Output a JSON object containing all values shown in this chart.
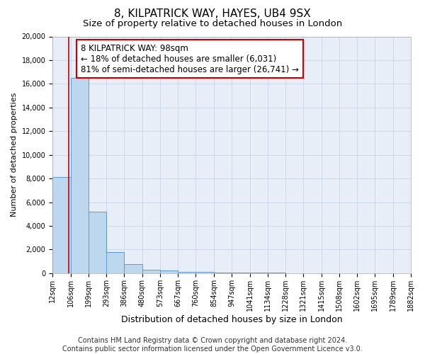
{
  "title": "8, KILPATRICK WAY, HAYES, UB4 9SX",
  "subtitle": "Size of property relative to detached houses in London",
  "xlabel": "Distribution of detached houses by size in London",
  "ylabel": "Number of detached properties",
  "bin_labels": [
    "12sqm",
    "106sqm",
    "199sqm",
    "293sqm",
    "386sqm",
    "480sqm",
    "573sqm",
    "667sqm",
    "760sqm",
    "854sqm",
    "947sqm",
    "1041sqm",
    "1134sqm",
    "1228sqm",
    "1321sqm",
    "1415sqm",
    "1508sqm",
    "1602sqm",
    "1695sqm",
    "1789sqm",
    "1882sqm"
  ],
  "bar_heights": [
    8100,
    16500,
    5200,
    1800,
    750,
    300,
    200,
    120,
    80,
    60,
    40,
    30,
    20,
    15,
    12,
    10,
    8,
    6,
    5,
    4
  ],
  "bar_color": "#BDD7EE",
  "bar_edge_color": "#5B9BD5",
  "red_line_x": 98,
  "annotation_text": "8 KILPATRICK WAY: 98sqm\n← 18% of detached houses are smaller (6,031)\n81% of semi-detached houses are larger (26,741) →",
  "annotation_box_color": "#FFFFFF",
  "annotation_box_edge": "#CC0000",
  "red_line_color": "#CC0000",
  "ylim": [
    0,
    20000
  ],
  "yticks": [
    0,
    2000,
    4000,
    6000,
    8000,
    10000,
    12000,
    14000,
    16000,
    18000,
    20000
  ],
  "bg_color": "#E8EEF8",
  "footer_line1": "Contains HM Land Registry data © Crown copyright and database right 2024.",
  "footer_line2": "Contains public sector information licensed under the Open Government Licence v3.0.",
  "title_fontsize": 11,
  "subtitle_fontsize": 9.5,
  "xlabel_fontsize": 9,
  "ylabel_fontsize": 8,
  "tick_fontsize": 7,
  "annotation_fontsize": 8.5,
  "footer_fontsize": 7
}
